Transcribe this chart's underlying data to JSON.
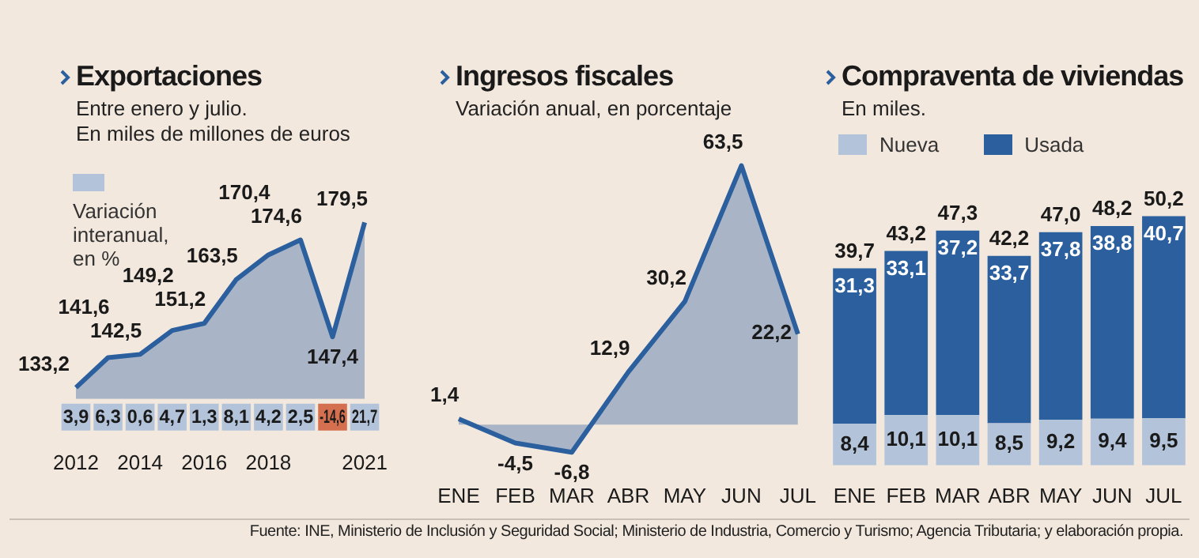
{
  "chart_data": [
    {
      "type": "area",
      "title": "Exportaciones",
      "subtitle": "Entre enero y julio.\nEn miles de millones de euros",
      "categories": [
        "2012",
        null,
        "2014",
        null,
        "2016",
        null,
        "2018",
        null,
        null,
        "2021"
      ],
      "series": [
        {
          "color": "#2b5f9e",
          "values": [
            133.2,
            141.6,
            142.5,
            149.2,
            151.2,
            163.5,
            170.4,
            174.6,
            147.4,
            179.5
          ],
          "value_labels": [
            "133,2",
            "141,6",
            "142,5",
            "149,2",
            "151,2",
            "163,5",
            "170,4",
            "174,6",
            "147,4",
            "179,5"
          ]
        }
      ],
      "annotations": [
        "Variación interanual, en %",
        "3,9",
        "6,3",
        "0,6",
        "4,7",
        "1,3",
        "8,1",
        "4,2",
        "2,5",
        "-14,6",
        "21,7"
      ],
      "tick_labels": "x",
      "marker": "none"
    },
    {
      "type": "area",
      "title": "Ingresos fiscales",
      "subtitle": "Variación anual, en porcentaje",
      "categories": [
        "ENE",
        "FEB",
        "MAR",
        "ABR",
        "MAY",
        "JUN",
        "JUL"
      ],
      "series": [
        {
          "color": "#2b5f9e",
          "values": [
            1.4,
            -4.5,
            -6.8,
            12.9,
            30.2,
            63.5,
            22.2
          ],
          "value_labels": [
            "1,4",
            "-4,5",
            "-6,8",
            "12,9",
            "30,2",
            "63,5",
            "22,2"
          ]
        }
      ],
      "tick_labels": "x",
      "marker": "none"
    },
    {
      "type": "bar",
      "stacked": true,
      "title": "Compraventa de viviendas",
      "subtitle": "En miles.",
      "categories": [
        "ENE",
        "FEB",
        "MAR",
        "ABR",
        "MAY",
        "JUN",
        "JUL"
      ],
      "series": [
        {
          "name": "Nueva",
          "color": "#b3c4da",
          "values": [
            8.4,
            10.1,
            10.1,
            8.5,
            9.2,
            9.4,
            9.5
          ],
          "value_labels": [
            "8,4",
            "10,1",
            "10,1",
            "8,5",
            "9,2",
            "9,4",
            "9,5"
          ]
        },
        {
          "name": "Usada",
          "color": "#2b5f9e",
          "values": [
            31.3,
            33.1,
            37.2,
            33.7,
            37.8,
            38.8,
            40.7
          ],
          "value_labels": [
            "31,3",
            "33,1",
            "37,2",
            "33,7",
            "37,8",
            "38,8",
            "40,7"
          ]
        }
      ],
      "totals": [
        "39,7",
        "43,2",
        "47,3",
        "42,2",
        "47,0",
        "48,2",
        "50,2"
      ],
      "tick_labels": "x",
      "legend": "top",
      "annotations": [
        "Fuente: INE, Ministerio de Inclusión y Seguridad Social; Ministerio de Industria, Comercio y Turismo; Agencia Tributaria; y elaboración propia."
      ]
    }
  ]
}
